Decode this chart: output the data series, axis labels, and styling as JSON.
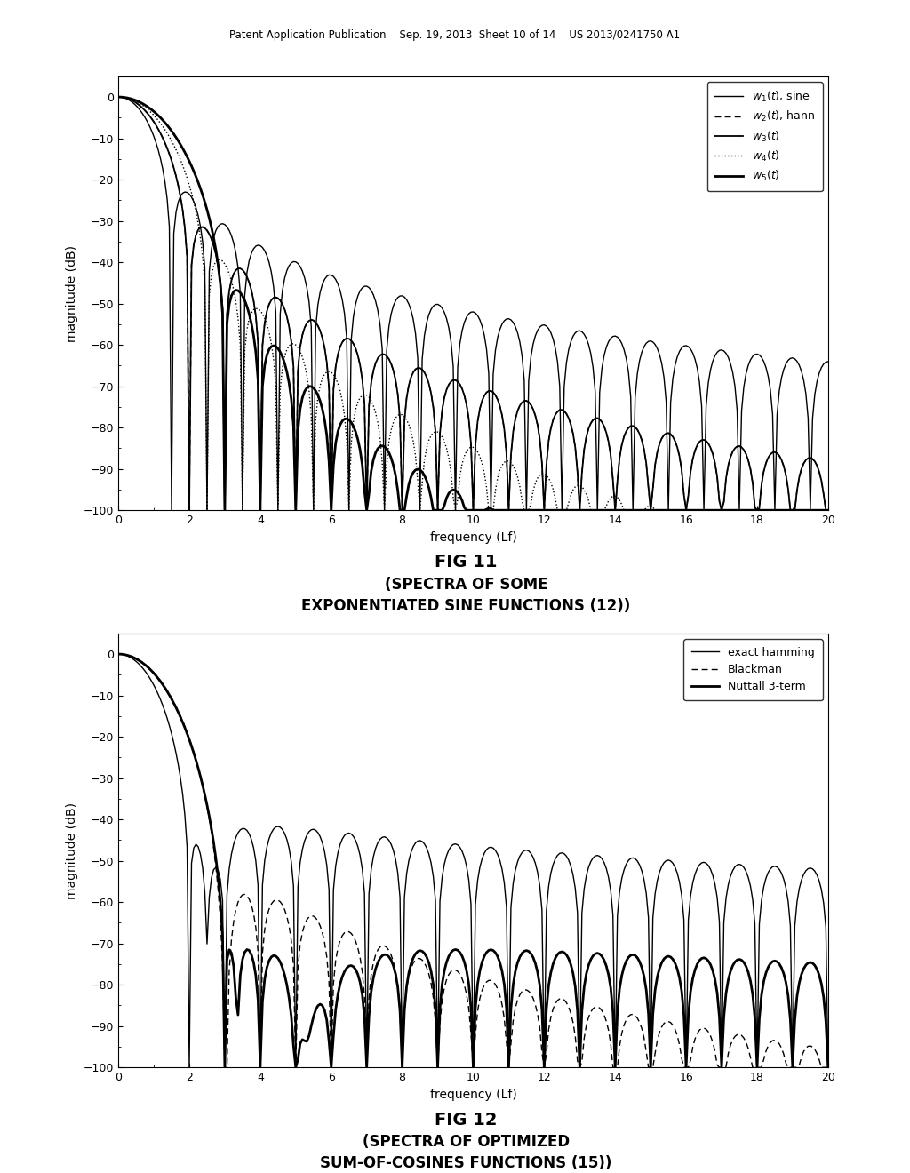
{
  "fig_width": 10.24,
  "fig_height": 13.2,
  "bg_color": "#ffffff",
  "header_text": "Patent Application Publication    Sep. 19, 2013  Sheet 10 of 14    US 2013/0241750 A1",
  "plot1": {
    "title": "",
    "xlabel": "frequency (Lf)",
    "ylabel": "magnitude (dB)",
    "xlim": [
      0,
      20
    ],
    "ylim": [
      -100,
      5
    ],
    "yticks": [
      0,
      -10,
      -20,
      -30,
      -40,
      -50,
      -60,
      -70,
      -80,
      -90,
      -100
    ],
    "xticks": [
      0,
      2,
      4,
      6,
      8,
      10,
      12,
      14,
      16,
      18,
      20
    ],
    "legend": [
      "w₁(t), sine",
      "--w₂(t), hann",
      "—w₃(t)",
      "·····w₄(t)",
      "—w₅(t)"
    ],
    "legend_labels": [
      "$w_1(t)$, sine",
      "$w_2(t)$, hann",
      "$w_3(t)$",
      "$w_4(t)$",
      "$w_5(t)$"
    ],
    "fig_label": "FIG 11",
    "fig_caption": "(SPECTRA OF SOME\nEXPONENTIATED SINE FUNCTIONS (12))"
  },
  "plot2": {
    "title": "",
    "xlabel": "frequency (Lf)",
    "ylabel": "magnitude (dB)",
    "xlim": [
      0,
      20
    ],
    "ylim": [
      -100,
      5
    ],
    "yticks": [
      0,
      -10,
      -20,
      -30,
      -40,
      -50,
      -60,
      -70,
      -80,
      -90,
      -100
    ],
    "xticks": [
      0,
      2,
      4,
      6,
      8,
      10,
      12,
      14,
      16,
      18,
      20
    ],
    "legend_labels": [
      "exact hamming",
      "Blackman",
      "Nuttall 3-term"
    ],
    "fig_label": "FIG 12",
    "fig_caption": "(SPECTRA OF OPTIMIZED\nSUM-OF-COSINES FUNCTIONS (15))"
  },
  "line_color": "#000000",
  "grid_color": "#cccccc"
}
